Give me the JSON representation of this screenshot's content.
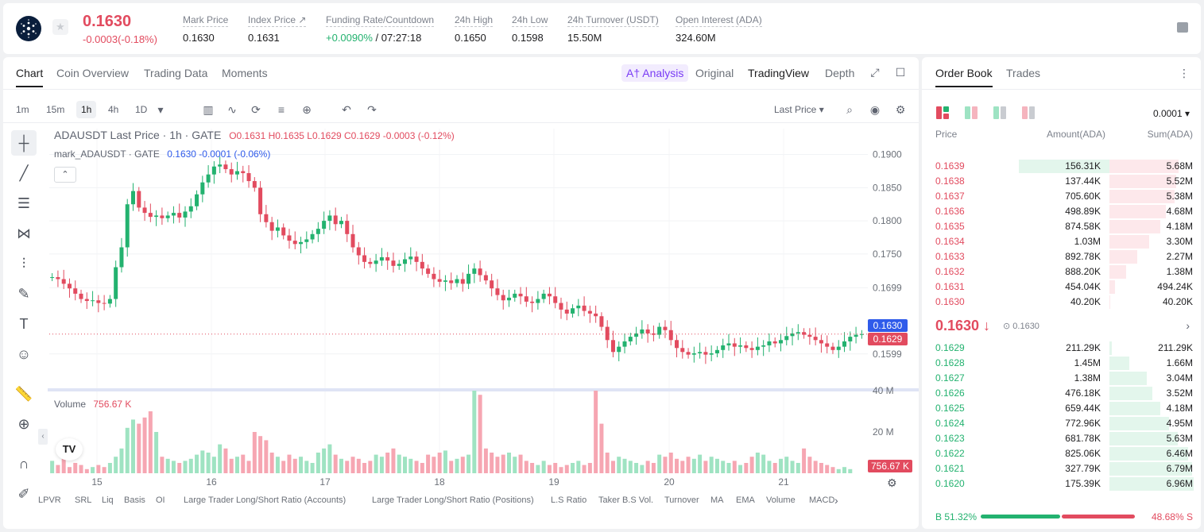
{
  "header": {
    "last_price": "0.1630",
    "change": "-0.0003(-0.18%)",
    "stats": [
      {
        "label": "Mark Price",
        "value": "0.1630"
      },
      {
        "label": "Index Price ↗",
        "value": "0.1631"
      },
      {
        "label": "Funding Rate/Countdown",
        "value_green": "+0.0090%",
        "value": " / 07:27:18"
      },
      {
        "label": "24h High",
        "value": "0.1650"
      },
      {
        "label": "24h Low",
        "value": "0.1598"
      },
      {
        "label": "24h Turnover (USDT)",
        "value": "15.50M"
      },
      {
        "label": "Open Interest (ADA)",
        "value": "324.60M"
      }
    ]
  },
  "chart_panel": {
    "tabs": [
      "Chart",
      "Coin Overview",
      "Trading Data",
      "Moments"
    ],
    "ai_analysis": "A† Analysis",
    "views": [
      "Original",
      "TradingView",
      "Depth"
    ],
    "timeframes": [
      "1m",
      "15m",
      "1h",
      "4h",
      "1D"
    ],
    "price_source": "Last Price",
    "legend_main_prefix": "ADAUSDT Last Price · 1h · GATE",
    "legend_ohlc": "O0.1631 H0.1635 L0.1629 C0.1629 -0.0003 (-0.12%)",
    "legend_mark_prefix": "mark_ADAUSDT · GATE",
    "legend_mark_values": "0.1630 -0.0001 (-0.06%)",
    "volume_label": "Volume",
    "volume_value": "756.67 K",
    "price_tag_blue": "0.1630",
    "price_tag_red": "0.1629",
    "volume_tag": "756.67 K",
    "indicators": [
      "LPVR",
      "SRL",
      "Liq",
      "Basis",
      "OI",
      "Large Trader Long/Short Ratio (Accounts)",
      "Large Trader Long/Short Ratio (Positions)",
      "L.S Ratio",
      "Taker B.S Vol.",
      "Turnover",
      "MA",
      "EMA",
      "Volume",
      "MACD"
    ],
    "watermark": "TV"
  },
  "chart_data": {
    "type": "candlestick",
    "title": "ADAUSDT Last Price · 1h · GATE",
    "y_ticks": [
      "0.1900",
      "0.1850",
      "0.1800",
      "0.1750",
      "0.1699",
      "0.1599"
    ],
    "y_range": [
      0.157,
      0.192
    ],
    "x_ticks": [
      "15",
      "16",
      "17",
      "18",
      "19",
      "20",
      "21"
    ],
    "volume_ticks": [
      "40 M",
      "20 M"
    ],
    "volume_range_m": [
      0,
      40
    ],
    "price_path": [
      0.1715,
      0.1712,
      0.1705,
      0.1698,
      0.169,
      0.1682,
      0.1679,
      0.168,
      0.1676,
      0.1675,
      0.1682,
      0.173,
      0.176,
      0.1825,
      0.1845,
      0.182,
      0.1812,
      0.1806,
      0.1808,
      0.1804,
      0.1808,
      0.1812,
      0.1805,
      0.1814,
      0.1822,
      0.184,
      0.1858,
      0.187,
      0.1882,
      0.1885,
      0.1878,
      0.187,
      0.1875,
      0.1872,
      0.186,
      0.185,
      0.181,
      0.1798,
      0.1785,
      0.179,
      0.1778,
      0.177,
      0.1765,
      0.1768,
      0.1772,
      0.178,
      0.1788,
      0.18,
      0.1808,
      0.1795,
      0.18,
      0.178,
      0.176,
      0.1748,
      0.1738,
      0.1735,
      0.174,
      0.1745,
      0.174,
      0.1732,
      0.1735,
      0.1742,
      0.1746,
      0.1738,
      0.1728,
      0.172,
      0.1712,
      0.1708,
      0.171,
      0.1706,
      0.1712,
      0.1705,
      0.172,
      0.1728,
      0.1718,
      0.171,
      0.1698,
      0.1688,
      0.168,
      0.1684,
      0.169,
      0.1686,
      0.1678,
      0.1676,
      0.1682,
      0.169,
      0.1686,
      0.1676,
      0.1666,
      0.166,
      0.1668,
      0.1672,
      0.1664,
      0.166,
      0.1656,
      0.164,
      0.162,
      0.1602,
      0.161,
      0.1618,
      0.1625,
      0.163,
      0.1636,
      0.163,
      0.1628,
      0.164,
      0.1635,
      0.162,
      0.1608,
      0.1602,
      0.1598,
      0.16,
      0.1602,
      0.1598,
      0.16,
      0.1605,
      0.1612,
      0.1615,
      0.161,
      0.1612,
      0.1608,
      0.1605,
      0.161,
      0.1612,
      0.1618,
      0.1615,
      0.162,
      0.1626,
      0.163,
      0.1632,
      0.1628,
      0.1625,
      0.162,
      0.1615,
      0.161,
      0.1605,
      0.161,
      0.1618,
      0.1625,
      0.1628,
      0.1629
    ],
    "volume_m": [
      6,
      4,
      7,
      3,
      5,
      4,
      2,
      3,
      4,
      3,
      5,
      8,
      12,
      22,
      26,
      24,
      27,
      30,
      20,
      8,
      7,
      6,
      5,
      6,
      7,
      9,
      11,
      10,
      8,
      14,
      12,
      7,
      8,
      9,
      6,
      20,
      18,
      16,
      10,
      8,
      6,
      9,
      7,
      8,
      6,
      5,
      10,
      12,
      14,
      9,
      7,
      6,
      8,
      7,
      5,
      6,
      9,
      8,
      10,
      12,
      9,
      8,
      7,
      6,
      5,
      9,
      8,
      10,
      11,
      6,
      7,
      8,
      9,
      40,
      38,
      12,
      10,
      8,
      9,
      10,
      8,
      9,
      6,
      5,
      4,
      6,
      4,
      5,
      3,
      4,
      5,
      6,
      4,
      5,
      40,
      24,
      10,
      6,
      8,
      7,
      6,
      5,
      4,
      6,
      5,
      9,
      8,
      10,
      7,
      6,
      8,
      7,
      9,
      6,
      8,
      7,
      6,
      5,
      6,
      4,
      5,
      8,
      10,
      9,
      6,
      5,
      7,
      8,
      6,
      5,
      12,
      8,
      6,
      5,
      4,
      3,
      2,
      3,
      2
    ]
  },
  "order_book": {
    "tabs": [
      "Order Book",
      "Trades"
    ],
    "precision": "0.0001",
    "columns": [
      "Price",
      "Amount(ADA)",
      "Sum(ADA)"
    ],
    "asks": [
      {
        "price": "0.1639",
        "amount": "156.31K",
        "sum": "5.68M",
        "amt_frac": 0.27,
        "sum_frac": 0.82
      },
      {
        "price": "0.1638",
        "amount": "137.44K",
        "sum": "5.52M",
        "amt_frac": 0.0,
        "sum_frac": 0.79
      },
      {
        "price": "0.1637",
        "amount": "705.60K",
        "sum": "5.38M",
        "amt_frac": 0.0,
        "sum_frac": 0.77
      },
      {
        "price": "0.1636",
        "amount": "498.89K",
        "sum": "4.68M",
        "amt_frac": 0.0,
        "sum_frac": 0.67
      },
      {
        "price": "0.1635",
        "amount": "874.58K",
        "sum": "4.18M",
        "amt_frac": 0.0,
        "sum_frac": 0.6
      },
      {
        "price": "0.1634",
        "amount": "1.03M",
        "sum": "3.30M",
        "amt_frac": 0.0,
        "sum_frac": 0.47
      },
      {
        "price": "0.1633",
        "amount": "892.78K",
        "sum": "2.27M",
        "amt_frac": 0.0,
        "sum_frac": 0.33
      },
      {
        "price": "0.1632",
        "amount": "888.20K",
        "sum": "1.38M",
        "amt_frac": 0.0,
        "sum_frac": 0.2
      },
      {
        "price": "0.1631",
        "amount": "454.04K",
        "sum": "494.24K",
        "amt_frac": 0.0,
        "sum_frac": 0.07
      },
      {
        "price": "0.1630",
        "amount": "40.20K",
        "sum": "40.20K",
        "amt_frac": 0.0,
        "sum_frac": 0.01
      }
    ],
    "mid_price": "0.1630 ↓",
    "mid_mark": "0.1630",
    "bids": [
      {
        "price": "0.1629",
        "amount": "211.29K",
        "sum": "211.29K",
        "sum_frac": 0.03
      },
      {
        "price": "0.1628",
        "amount": "1.45M",
        "sum": "1.66M",
        "sum_frac": 0.24
      },
      {
        "price": "0.1627",
        "amount": "1.38M",
        "sum": "3.04M",
        "sum_frac": 0.44
      },
      {
        "price": "0.1626",
        "amount": "476.18K",
        "sum": "3.52M",
        "sum_frac": 0.51
      },
      {
        "price": "0.1625",
        "amount": "659.44K",
        "sum": "4.18M",
        "sum_frac": 0.6
      },
      {
        "price": "0.1624",
        "amount": "772.96K",
        "sum": "4.95M",
        "sum_frac": 0.71
      },
      {
        "price": "0.1623",
        "amount": "681.78K",
        "sum": "5.63M",
        "sum_frac": 0.81
      },
      {
        "price": "0.1622",
        "amount": "825.06K",
        "sum": "6.46M",
        "sum_frac": 0.93
      },
      {
        "price": "0.1621",
        "amount": "327.79K",
        "sum": "6.79M",
        "sum_frac": 0.98
      },
      {
        "price": "0.1620",
        "amount": "175.39K",
        "sum": "6.96M",
        "sum_frac": 1.0
      }
    ],
    "buy_ratio": "B 51.32%",
    "sell_ratio": "48.68% S",
    "buy_frac": 0.5132
  },
  "colors": {
    "up": "#23b26f",
    "down": "#e24b5f",
    "accent": "#7a3cf5",
    "mark": "#2f5bea"
  }
}
